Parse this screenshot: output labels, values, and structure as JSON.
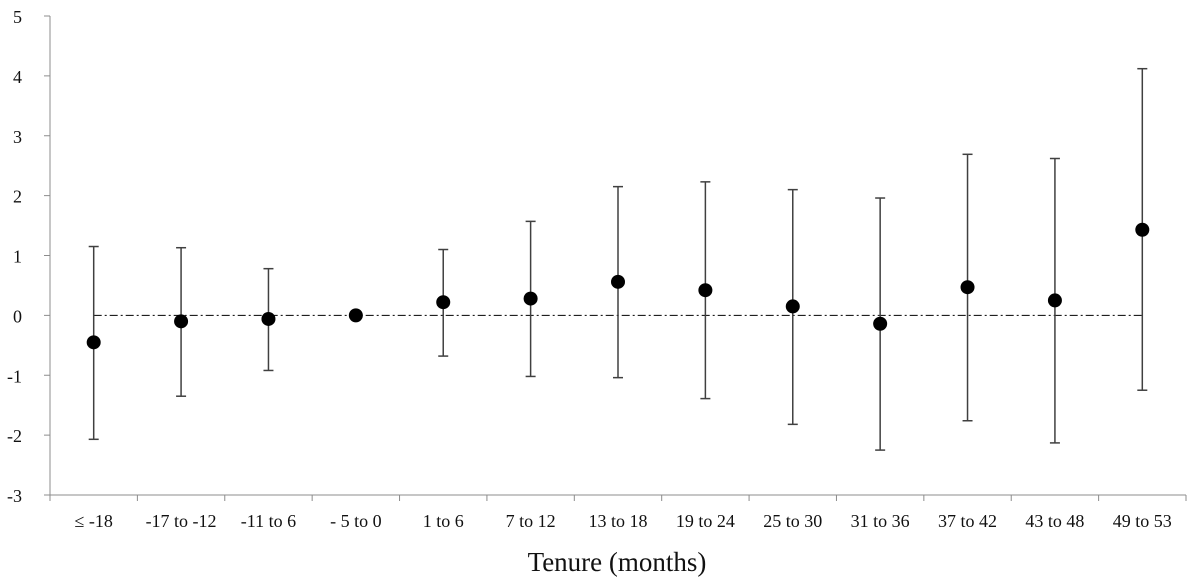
{
  "chart_data": {
    "type": "scatter",
    "title": "",
    "xlabel": "Tenure (months)",
    "ylabel": "",
    "ylim": [
      -3,
      5
    ],
    "yticks": [
      -3,
      -2,
      -1,
      0,
      1,
      2,
      3,
      4,
      5
    ],
    "grid": false,
    "legend": "none",
    "reference_line": {
      "y": 0,
      "style": "dash-dot"
    },
    "categories": [
      "≤ -18",
      "-17 to -12",
      "-11 to 6",
      "- 5 to 0",
      "1 to 6",
      "7 to 12",
      "13 to 18",
      "19 to 24",
      "25 to 30",
      "31 to 36",
      "37 to 42",
      "43 to 48",
      "49 to 53"
    ],
    "series": [
      {
        "values": [
          -0.45,
          -0.1,
          -0.06,
          0.0,
          0.22,
          0.28,
          0.56,
          0.42,
          0.15,
          -0.14,
          0.47,
          0.25,
          1.43
        ],
        "ci_low": [
          -2.07,
          -1.35,
          -0.92,
          null,
          -0.68,
          -1.02,
          -1.04,
          -1.39,
          -1.82,
          -2.25,
          -1.76,
          -2.13,
          -1.25
        ],
        "ci_high": [
          1.15,
          1.13,
          0.78,
          null,
          1.1,
          1.57,
          2.15,
          2.23,
          2.1,
          1.96,
          2.69,
          2.62,
          4.12
        ]
      }
    ],
    "colors": {
      "marker": "#000000",
      "errorbar": "#404040",
      "axis": "#8c8c8c",
      "refline": "#000000"
    }
  }
}
